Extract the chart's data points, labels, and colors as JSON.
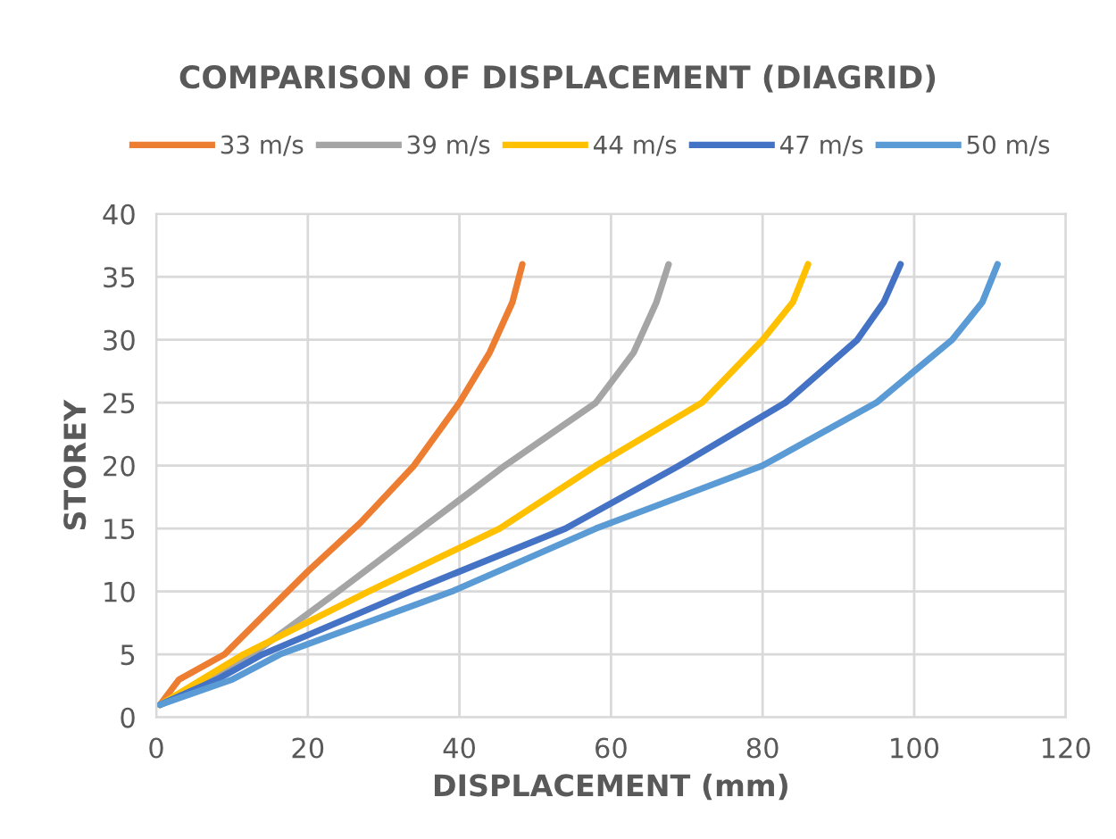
{
  "chart_data": {
    "type": "line",
    "title": "COMPARISON OF DISPLACEMENT (DIAGRID)",
    "xlabel": "DISPLACEMENT (mm)",
    "ylabel": "STOREY",
    "xlim": [
      0,
      120
    ],
    "xticks": [
      0,
      20,
      40,
      60,
      80,
      100,
      120
    ],
    "ylim": [
      0,
      40
    ],
    "yticks": [
      0,
      5,
      10,
      15,
      20,
      25,
      30,
      35,
      40
    ],
    "grid": true,
    "legend": "top",
    "marker": "none",
    "line_style": "solid",
    "series": [
      {
        "name": "33 m/s",
        "color": "#ed7d31",
        "x": [
          0.5,
          3,
          9,
          14,
          20,
          27,
          34,
          40,
          44,
          47,
          48.3
        ],
        "values": [
          1,
          3,
          5,
          8,
          11.6,
          15.5,
          20,
          25,
          29,
          33,
          36
        ]
      },
      {
        "name": "39 m/s",
        "color": "#a5a5a5",
        "x": [
          0.5,
          6.8,
          12.7,
          24,
          35,
          46,
          58,
          63,
          66,
          67.6
        ],
        "values": [
          1,
          3,
          5,
          10,
          15,
          20,
          25,
          29,
          33,
          36
        ]
      },
      {
        "name": "44 m/s",
        "color": "#ffc000",
        "x": [
          0.5,
          6,
          11.5,
          28,
          45.3,
          58,
          72,
          80,
          84,
          86
        ],
        "values": [
          1,
          3,
          5,
          10,
          15,
          20,
          25,
          30,
          33,
          36
        ]
      },
      {
        "name": "47 m/s",
        "color": "#4472c4",
        "x": [
          0.5,
          8,
          14,
          33.5,
          54,
          69,
          83,
          92.5,
          96,
          98.2
        ],
        "values": [
          1,
          3,
          5,
          10,
          15,
          20,
          25,
          30,
          33,
          36
        ]
      },
      {
        "name": "50 m/s",
        "color": "#5b9bd5",
        "x": [
          0.5,
          10,
          16.3,
          39,
          58,
          80,
          95,
          105,
          109,
          111
        ],
        "values": [
          1,
          3,
          5,
          10,
          15,
          20,
          25,
          30,
          33,
          36
        ]
      }
    ]
  }
}
